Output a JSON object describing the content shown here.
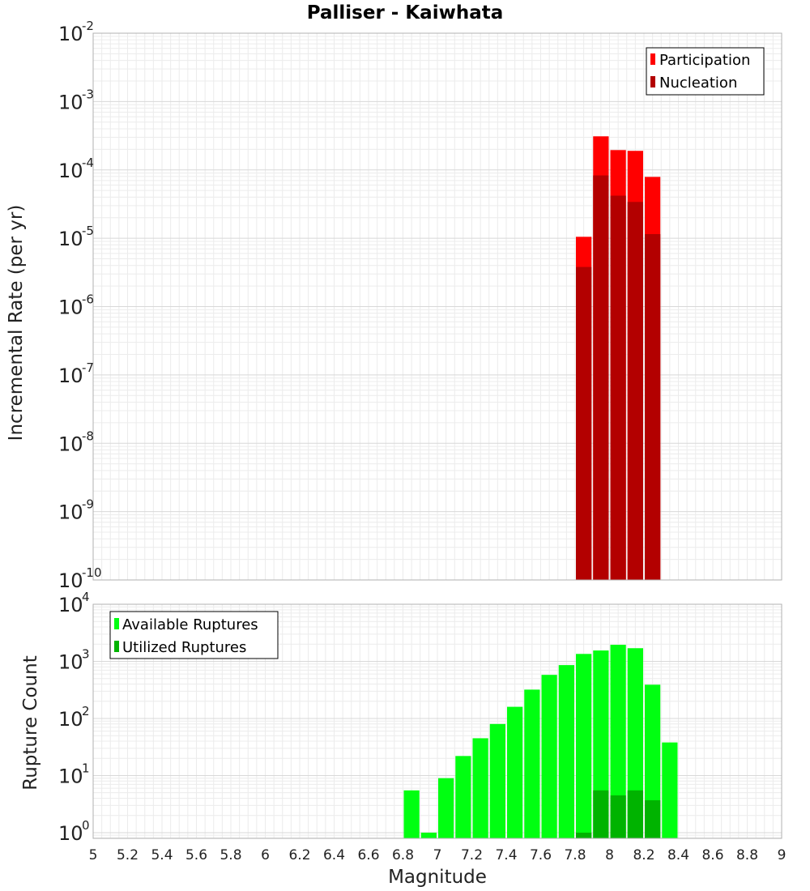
{
  "chart_data": [
    {
      "type": "bar",
      "title": "Palliser - Kaiwhata",
      "ylabel": "Incremental Rate (per yr)",
      "yscale": "log",
      "ylim_exp": [
        -10,
        -2
      ],
      "xlim": [
        5,
        9
      ],
      "bin_width": 0.1,
      "legend": {
        "placement": "top-right",
        "entries": [
          "Participation",
          "Nucleation"
        ]
      },
      "colors": {
        "Participation": "#ff0000",
        "Nucleation": "#b30000"
      },
      "series": [
        {
          "name": "Participation",
          "x": [
            7.85,
            7.95,
            8.05,
            8.15,
            8.25
          ],
          "values": [
            1.05e-05,
            0.00031,
            0.000195,
            0.00019,
            7.9e-05
          ]
        },
        {
          "name": "Nucleation",
          "x": [
            7.85,
            7.95,
            8.05,
            8.15,
            8.25
          ],
          "values": [
            3.8e-06,
            8.3e-05,
            4.2e-05,
            3.4e-05,
            1.15e-05
          ]
        }
      ]
    },
    {
      "type": "bar",
      "ylabel": "Rupture Count",
      "xlabel": "Magnitude",
      "yscale": "log",
      "ylim_exp": [
        -0.1,
        4
      ],
      "xlim": [
        5,
        9
      ],
      "xticks": [
        "5",
        "5.2",
        "5.4",
        "5.6",
        "5.8",
        "6",
        "6.2",
        "6.4",
        "6.6",
        "6.8",
        "7",
        "7.2",
        "7.4",
        "7.6",
        "7.8",
        "8",
        "8.2",
        "8.4",
        "8.6",
        "8.8",
        "9"
      ],
      "bin_width": 0.1,
      "legend": {
        "placement": "top-left",
        "entries": [
          "Available Ruptures",
          "Utilized Ruptures"
        ]
      },
      "colors": {
        "Available Ruptures": "#00ff11",
        "Utilized Ruptures": "#00b300"
      },
      "series": [
        {
          "name": "Available Ruptures",
          "x": [
            6.85,
            6.95,
            7.05,
            7.15,
            7.25,
            7.35,
            7.45,
            7.55,
            7.65,
            7.75,
            7.85,
            7.95,
            8.05,
            8.15,
            8.25,
            8.35
          ],
          "values": [
            5.5,
            1,
            9,
            22,
            45,
            80,
            160,
            320,
            580,
            860,
            1350,
            1550,
            1950,
            1700,
            390,
            38
          ]
        },
        {
          "name": "Utilized Ruptures",
          "x": [
            7.85,
            7.95,
            8.05,
            8.15,
            8.25
          ],
          "values": [
            1,
            5.5,
            4.5,
            5.5,
            3.7
          ]
        }
      ]
    }
  ]
}
